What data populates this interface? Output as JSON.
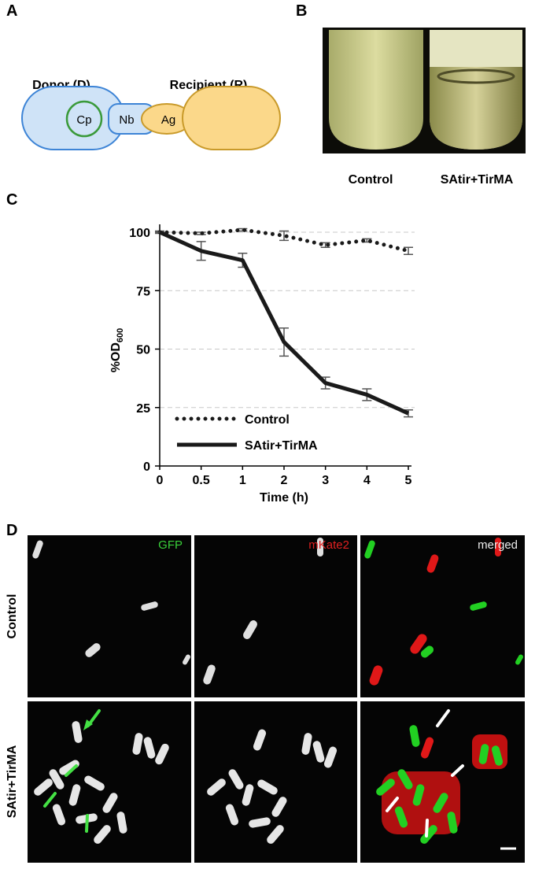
{
  "panels": {
    "A": {
      "label": "A",
      "donor": "Donor (D)",
      "recipient": "Recipient (R)",
      "cp": "Cp",
      "nb": "Nb",
      "ag": "Ag"
    },
    "B": {
      "label": "B",
      "captions": [
        "Control",
        "SAtir+TirMA"
      ]
    },
    "C": {
      "label": "C"
    },
    "D": {
      "label": "D",
      "columns": [
        "GFP",
        "mKate2",
        "merged"
      ],
      "rows": [
        "Control",
        "SAtir+TirMA"
      ]
    }
  },
  "chart_data": {
    "type": "line",
    "categories": [
      "0",
      "0.5",
      "1",
      "2",
      "3",
      "4",
      "5"
    ],
    "xlabel": "Time (h)",
    "ylabel": "%OD",
    "ylabel_subscript": "600",
    "ylim": [
      0,
      100
    ],
    "yticks": [
      0,
      25,
      50,
      75,
      100
    ],
    "grid": true,
    "legend": "lower left",
    "series": [
      {
        "name": "Control",
        "color": "#1a1a1a",
        "style": "dotted",
        "values": [
          100,
          99.5,
          101,
          98.5,
          94.5,
          96.5,
          92
        ],
        "errors": [
          0.5,
          0.5,
          0.5,
          2,
          1,
          0.7,
          1.5
        ]
      },
      {
        "name": "SAtir+TirMA",
        "color": "#1a1a1a",
        "style": "solid",
        "values": [
          100,
          92,
          88,
          53,
          35.5,
          30.5,
          22.5
        ],
        "errors": [
          0,
          4,
          3,
          6,
          2.5,
          2.5,
          1.5
        ]
      }
    ]
  }
}
